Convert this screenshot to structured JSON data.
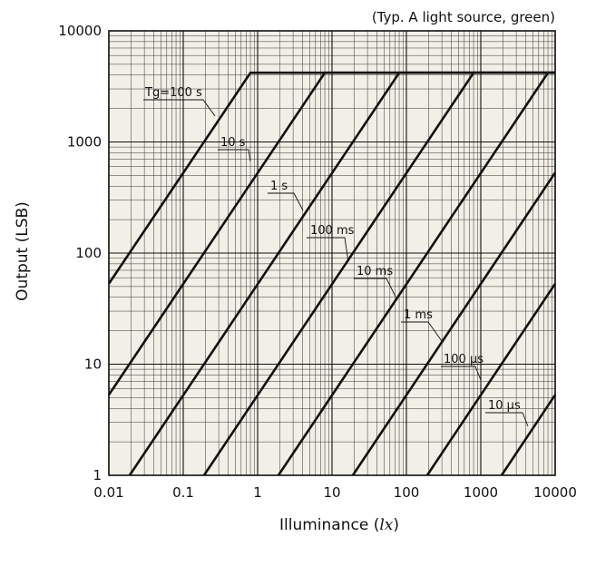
{
  "chart_data": {
    "type": "line",
    "subtitle": "(Typ. A light source, green)",
    "xlabel": "Illuminance (",
    "xlabel_unit": "lx",
    "xlabel_close": ")",
    "ylabel": "Output (LSB)",
    "x_scale": "log",
    "y_scale": "log",
    "xlim": [
      0.01,
      10000
    ],
    "ylim": [
      1,
      10000
    ],
    "x_tick_labels": [
      "0.01",
      "0.1",
      "1",
      "10",
      "100",
      "1000",
      "10000"
    ],
    "y_tick_labels": [
      "1",
      "10",
      "100",
      "1000",
      "10000"
    ],
    "grid": true,
    "background": "#f2efe6",
    "line_color": "#111111",
    "saturation_output": 4200,
    "series": [
      {
        "name": "Tg=100 s",
        "points": [
          [
            0.01,
            53
          ],
          [
            0.8,
            4200
          ]
        ]
      },
      {
        "name": "10 s",
        "points": [
          [
            0.01,
            5.3
          ],
          [
            8,
            4200
          ]
        ]
      },
      {
        "name": "1 s",
        "points": [
          [
            0.019,
            1
          ],
          [
            80,
            4200
          ]
        ]
      },
      {
        "name": "100 ms",
        "points": [
          [
            0.19,
            1
          ],
          [
            800,
            4200
          ]
        ]
      },
      {
        "name": "10 ms",
        "points": [
          [
            1.9,
            1
          ],
          [
            8000,
            4200
          ]
        ]
      },
      {
        "name": "1 ms",
        "points": [
          [
            19,
            1
          ],
          [
            10000,
            530
          ]
        ]
      },
      {
        "name": "100 μs",
        "points": [
          [
            190,
            1
          ],
          [
            10000,
            53
          ]
        ]
      },
      {
        "name": "10 μs",
        "points": [
          [
            1900,
            1
          ],
          [
            10000,
            5.3
          ]
        ]
      }
    ]
  }
}
